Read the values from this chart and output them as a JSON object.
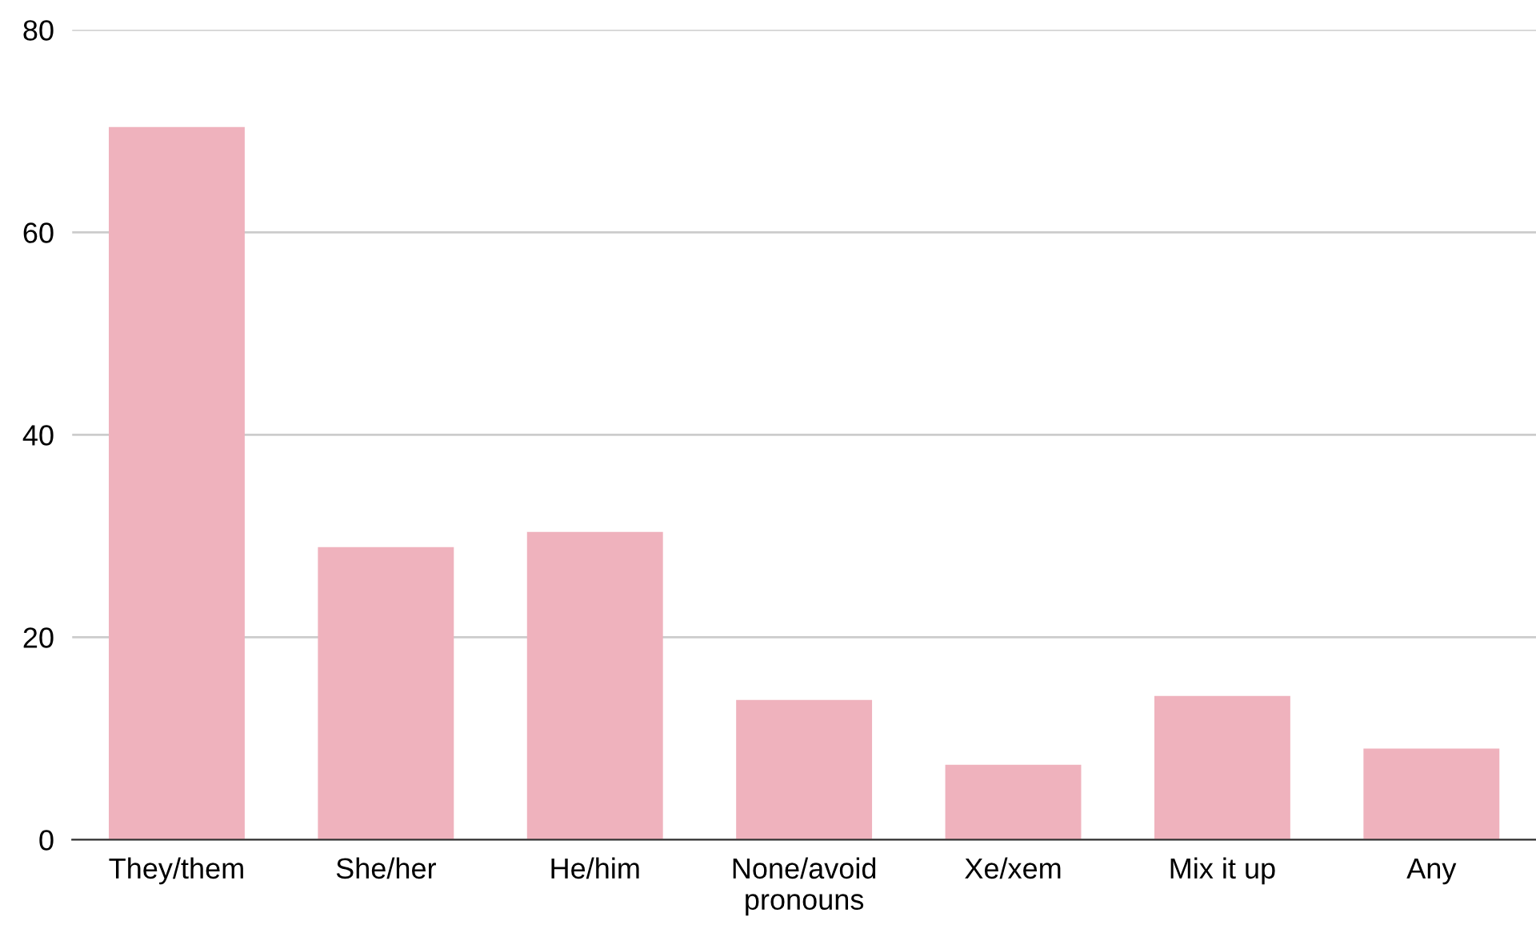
{
  "chart_data": {
    "type": "bar",
    "categories": [
      "They/them",
      "She/her",
      "He/him",
      "None/avoid\npronouns",
      "Xe/xem",
      "Mix it up",
      "Any"
    ],
    "values": [
      70.4,
      28.9,
      30.4,
      13.8,
      7.4,
      14.2,
      9.0
    ],
    "color": "#efb2bd",
    "ylim": [
      0,
      80
    ],
    "yticks": [
      0,
      20,
      40,
      60,
      80
    ],
    "grid": "y",
    "legend": false
  }
}
